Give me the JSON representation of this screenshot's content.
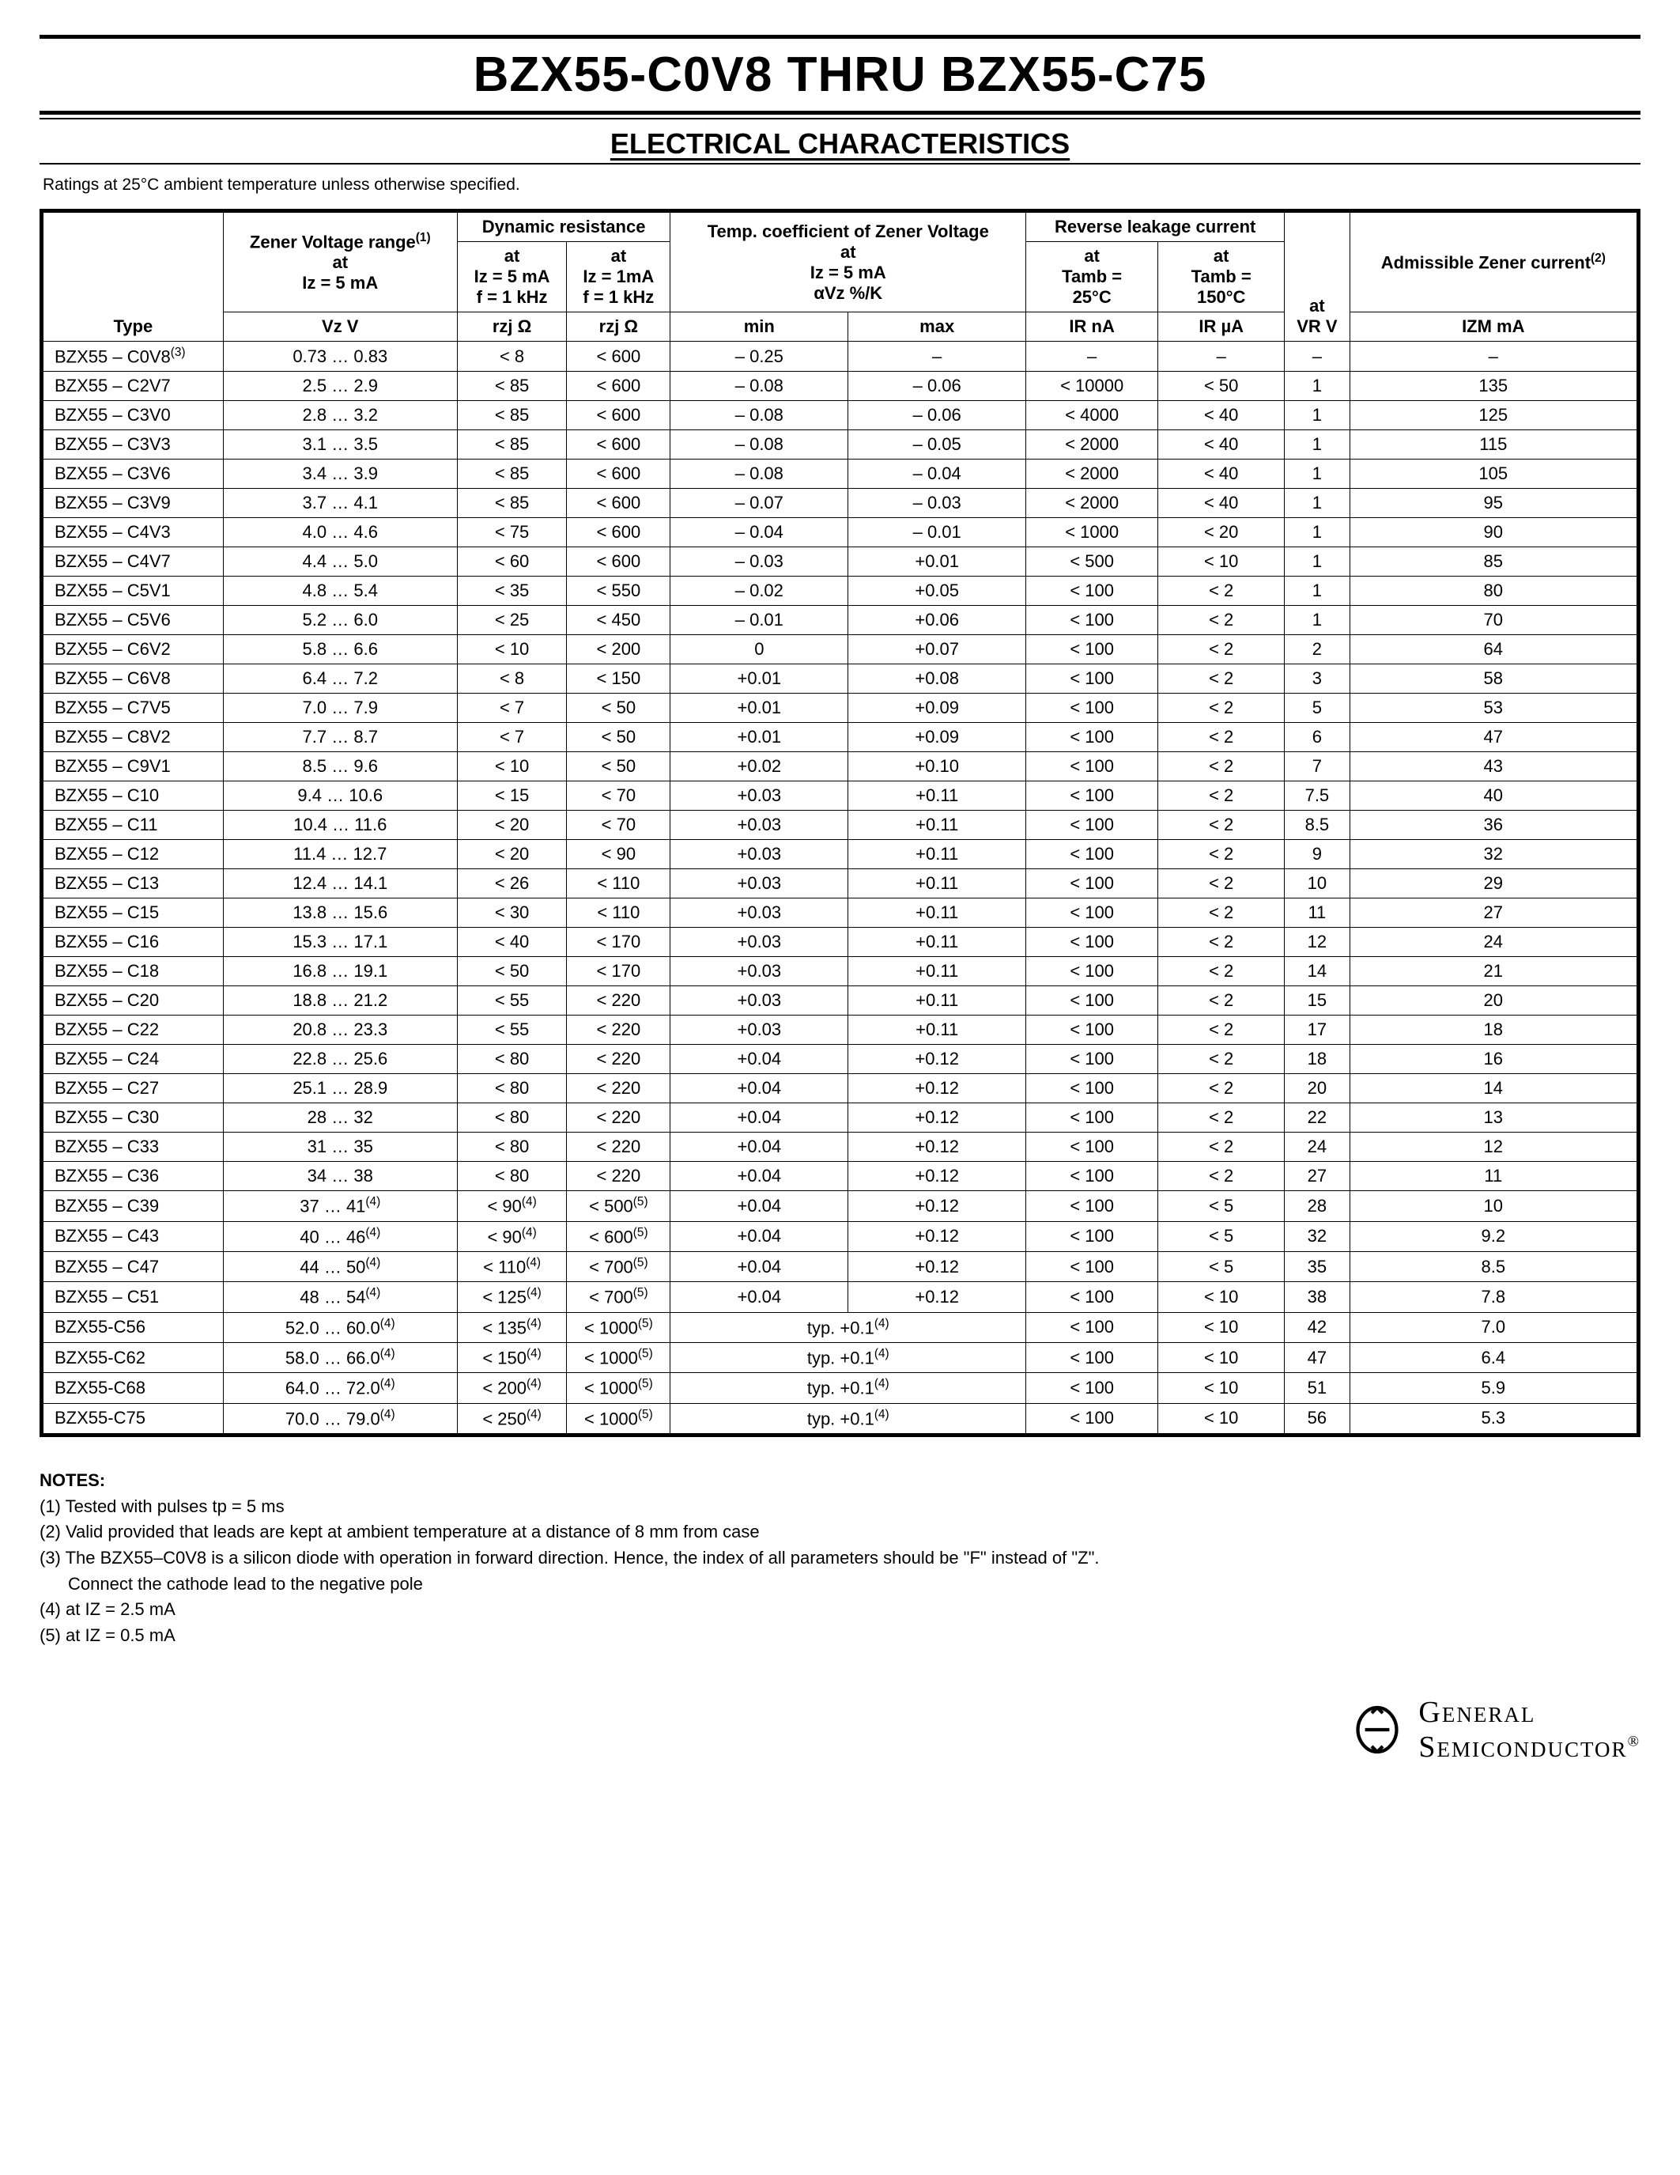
{
  "title": "BZX55-C0V8 THRU BZX55-C75",
  "subtitle": "ELECTRICAL CHARACTERISTICS",
  "ratings_note": "Ratings at 25°C ambient temperature unless otherwise specified.",
  "columns": {
    "type": "Type",
    "zener_heading": "Zener Voltage range",
    "zener_sup": "(1)",
    "zener_cond1": "at",
    "zener_cond2": "Iz = 5 mA",
    "zener_unit": "Vz V",
    "dyn_heading": "Dynamic resistance",
    "dyn_a_1": "at",
    "dyn_a_2": "Iz = 5 mA",
    "dyn_a_3": "f = 1 kHz",
    "dyn_a_unit": "rzj Ω",
    "dyn_b_1": "at",
    "dyn_b_2": "Iz = 1mA",
    "dyn_b_3": "f = 1 kHz",
    "dyn_b_unit": "rzj Ω",
    "tc_heading": "Temp. coefficient of Zener Voltage",
    "tc_cond1": "at",
    "tc_cond2": "Iz = 5 mA",
    "tc_cond3": "αVz %/K",
    "tc_min": "min",
    "tc_max": "max",
    "rl_heading": "Reverse leakage current",
    "rl_a_1": "at",
    "rl_a_2": "Tamb =",
    "rl_a_3": "25°C",
    "rl_a_unit": "IR nA",
    "rl_b_1": "at",
    "rl_b_2": "Tamb =",
    "rl_b_3": "150°C",
    "rl_b_unit": "IR µA",
    "vr_1": "at",
    "vr_2": "VR V",
    "adm_heading": "Admissible Zener current",
    "adm_sup": "(2)",
    "adm_unit": "IZM mA"
  },
  "rows": [
    {
      "type": "BZX55 – C0V8",
      "sup": "(3)",
      "vz": "0.73 … 0.83",
      "r1": "< 8",
      "r2": "< 600",
      "tmin": "– 0.25",
      "tmax": "–",
      "ir1": "–",
      "ir2": "–",
      "vr": "–",
      "izm": "–"
    },
    {
      "type": "BZX55 – C2V7",
      "vz": "2.5 … 2.9",
      "r1": "< 85",
      "r2": "< 600",
      "tmin": "– 0.08",
      "tmax": "– 0.06",
      "ir1": "< 10000",
      "ir2": "< 50",
      "vr": "1",
      "izm": "135"
    },
    {
      "type": "BZX55 – C3V0",
      "vz": "2.8 … 3.2",
      "r1": "< 85",
      "r2": "< 600",
      "tmin": "– 0.08",
      "tmax": "– 0.06",
      "ir1": "< 4000",
      "ir2": "< 40",
      "vr": "1",
      "izm": "125"
    },
    {
      "type": "BZX55 – C3V3",
      "vz": "3.1 … 3.5",
      "r1": "< 85",
      "r2": "< 600",
      "tmin": "– 0.08",
      "tmax": "– 0.05",
      "ir1": "< 2000",
      "ir2": "< 40",
      "vr": "1",
      "izm": "115"
    },
    {
      "type": "BZX55 – C3V6",
      "vz": "3.4 … 3.9",
      "r1": "< 85",
      "r2": "< 600",
      "tmin": "– 0.08",
      "tmax": "– 0.04",
      "ir1": "< 2000",
      "ir2": "< 40",
      "vr": "1",
      "izm": "105"
    },
    {
      "type": "BZX55 – C3V9",
      "vz": "3.7 … 4.1",
      "r1": "< 85",
      "r2": "< 600",
      "tmin": "– 0.07",
      "tmax": "– 0.03",
      "ir1": "< 2000",
      "ir2": "< 40",
      "vr": "1",
      "izm": "95"
    },
    {
      "type": "BZX55 – C4V3",
      "vz": "4.0 … 4.6",
      "r1": "< 75",
      "r2": "< 600",
      "tmin": "– 0.04",
      "tmax": "– 0.01",
      "ir1": "< 1000",
      "ir2": "< 20",
      "vr": "1",
      "izm": "90"
    },
    {
      "type": "BZX55 – C4V7",
      "vz": "4.4 … 5.0",
      "r1": "< 60",
      "r2": "< 600",
      "tmin": "– 0.03",
      "tmax": "+0.01",
      "ir1": "< 500",
      "ir2": "< 10",
      "vr": "1",
      "izm": "85"
    },
    {
      "type": "BZX55 – C5V1",
      "vz": "4.8 … 5.4",
      "r1": "< 35",
      "r2": "< 550",
      "tmin": "– 0.02",
      "tmax": "+0.05",
      "ir1": "< 100",
      "ir2": "< 2",
      "vr": "1",
      "izm": "80"
    },
    {
      "type": "BZX55 – C5V6",
      "vz": "5.2 … 6.0",
      "r1": "< 25",
      "r2": "< 450",
      "tmin": "– 0.01",
      "tmax": "+0.06",
      "ir1": "< 100",
      "ir2": "< 2",
      "vr": "1",
      "izm": "70"
    },
    {
      "type": "BZX55 – C6V2",
      "vz": "5.8 … 6.6",
      "r1": "< 10",
      "r2": "< 200",
      "tmin": "0",
      "tmax": "+0.07",
      "ir1": "< 100",
      "ir2": "< 2",
      "vr": "2",
      "izm": "64"
    },
    {
      "type": "BZX55 – C6V8",
      "vz": "6.4 … 7.2",
      "r1": "< 8",
      "r2": "< 150",
      "tmin": "+0.01",
      "tmax": "+0.08",
      "ir1": "< 100",
      "ir2": "< 2",
      "vr": "3",
      "izm": "58"
    },
    {
      "type": "BZX55 – C7V5",
      "vz": "7.0 … 7.9",
      "r1": "< 7",
      "r2": "< 50",
      "tmin": "+0.01",
      "tmax": "+0.09",
      "ir1": "< 100",
      "ir2": "< 2",
      "vr": "5",
      "izm": "53"
    },
    {
      "type": "BZX55 – C8V2",
      "vz": "7.7 … 8.7",
      "r1": "< 7",
      "r2": "< 50",
      "tmin": "+0.01",
      "tmax": "+0.09",
      "ir1": "< 100",
      "ir2": "< 2",
      "vr": "6",
      "izm": "47"
    },
    {
      "type": "BZX55 – C9V1",
      "vz": "8.5 … 9.6",
      "r1": "< 10",
      "r2": "< 50",
      "tmin": "+0.02",
      "tmax": "+0.10",
      "ir1": "< 100",
      "ir2": "< 2",
      "vr": "7",
      "izm": "43"
    },
    {
      "type": "BZX55 – C10",
      "vz": "9.4 … 10.6",
      "r1": "< 15",
      "r2": "< 70",
      "tmin": "+0.03",
      "tmax": "+0.11",
      "ir1": "< 100",
      "ir2": "< 2",
      "vr": "7.5",
      "izm": "40"
    },
    {
      "type": "BZX55 – C11",
      "vz": "10.4 … 11.6",
      "r1": "< 20",
      "r2": "< 70",
      "tmin": "+0.03",
      "tmax": "+0.11",
      "ir1": "< 100",
      "ir2": "< 2",
      "vr": "8.5",
      "izm": "36"
    },
    {
      "type": "BZX55 – C12",
      "vz": "11.4 … 12.7",
      "r1": "< 20",
      "r2": "< 90",
      "tmin": "+0.03",
      "tmax": "+0.11",
      "ir1": "< 100",
      "ir2": "< 2",
      "vr": "9",
      "izm": "32"
    },
    {
      "type": "BZX55 – C13",
      "vz": "12.4 … 14.1",
      "r1": "< 26",
      "r2": "< 110",
      "tmin": "+0.03",
      "tmax": "+0.11",
      "ir1": "< 100",
      "ir2": "< 2",
      "vr": "10",
      "izm": "29"
    },
    {
      "type": "BZX55 – C15",
      "vz": "13.8 … 15.6",
      "r1": "< 30",
      "r2": "< 110",
      "tmin": "+0.03",
      "tmax": "+0.11",
      "ir1": "< 100",
      "ir2": "< 2",
      "vr": "11",
      "izm": "27"
    },
    {
      "type": "BZX55 – C16",
      "vz": "15.3 … 17.1",
      "r1": "< 40",
      "r2": "< 170",
      "tmin": "+0.03",
      "tmax": "+0.11",
      "ir1": "< 100",
      "ir2": "< 2",
      "vr": "12",
      "izm": "24"
    },
    {
      "type": "BZX55 – C18",
      "vz": "16.8 … 19.1",
      "r1": "< 50",
      "r2": "< 170",
      "tmin": "+0.03",
      "tmax": "+0.11",
      "ir1": "< 100",
      "ir2": "< 2",
      "vr": "14",
      "izm": "21"
    },
    {
      "type": "BZX55 – C20",
      "vz": "18.8 … 21.2",
      "r1": "< 55",
      "r2": "< 220",
      "tmin": "+0.03",
      "tmax": "+0.11",
      "ir1": "< 100",
      "ir2": "< 2",
      "vr": "15",
      "izm": "20"
    },
    {
      "type": "BZX55 – C22",
      "vz": "20.8 … 23.3",
      "r1": "< 55",
      "r2": "< 220",
      "tmin": "+0.03",
      "tmax": "+0.11",
      "ir1": "< 100",
      "ir2": "< 2",
      "vr": "17",
      "izm": "18"
    },
    {
      "type": "BZX55 – C24",
      "vz": "22.8 … 25.6",
      "r1": "< 80",
      "r2": "< 220",
      "tmin": "+0.04",
      "tmax": "+0.12",
      "ir1": "< 100",
      "ir2": "< 2",
      "vr": "18",
      "izm": "16"
    },
    {
      "type": "BZX55 – C27",
      "vz": "25.1 … 28.9",
      "r1": "< 80",
      "r2": "< 220",
      "tmin": "+0.04",
      "tmax": "+0.12",
      "ir1": "< 100",
      "ir2": "< 2",
      "vr": "20",
      "izm": "14"
    },
    {
      "type": "BZX55 – C30",
      "vz": "28 … 32",
      "r1": "< 80",
      "r2": "< 220",
      "tmin": "+0.04",
      "tmax": "+0.12",
      "ir1": "< 100",
      "ir2": "< 2",
      "vr": "22",
      "izm": "13"
    },
    {
      "type": "BZX55 – C33",
      "vz": "31 … 35",
      "r1": "< 80",
      "r2": "< 220",
      "tmin": "+0.04",
      "tmax": "+0.12",
      "ir1": "< 100",
      "ir2": "< 2",
      "vr": "24",
      "izm": "12"
    },
    {
      "type": "BZX55 – C36",
      "vz": "34 … 38",
      "r1": "< 80",
      "r2": "< 220",
      "tmin": "+0.04",
      "tmax": "+0.12",
      "ir1": "< 100",
      "ir2": "< 2",
      "vr": "27",
      "izm": "11"
    },
    {
      "type": "BZX55 – C39",
      "vz": "37 … 41",
      "vzsup": "(4)",
      "r1": "< 90",
      "r1sup": "(4)",
      "r2": "< 500",
      "r2sup": "(5)",
      "tmin": "+0.04",
      "tmax": "+0.12",
      "ir1": "< 100",
      "ir2": "< 5",
      "vr": "28",
      "izm": "10"
    },
    {
      "type": "BZX55 – C43",
      "vz": "40 … 46",
      "vzsup": "(4)",
      "r1": "< 90",
      "r1sup": "(4)",
      "r2": "< 600",
      "r2sup": "(5)",
      "tmin": "+0.04",
      "tmax": "+0.12",
      "ir1": "< 100",
      "ir2": "< 5",
      "vr": "32",
      "izm": "9.2"
    },
    {
      "type": "BZX55 – C47",
      "vz": "44 … 50",
      "vzsup": "(4)",
      "r1": "< 110",
      "r1sup": "(4)",
      "r2": "< 700",
      "r2sup": "(5)",
      "tmin": "+0.04",
      "tmax": "+0.12",
      "ir1": "< 100",
      "ir2": "< 5",
      "vr": "35",
      "izm": "8.5"
    },
    {
      "type": "BZX55 – C51",
      "vz": "48 … 54",
      "vzsup": "(4)",
      "r1": "< 125",
      "r1sup": "(4)",
      "r2": "< 700",
      "r2sup": "(5)",
      "tmin": "+0.04",
      "tmax": "+0.12",
      "ir1": "< 100",
      "ir2": "< 10",
      "vr": "38",
      "izm": "7.8"
    },
    {
      "type": "BZX55-C56",
      "vz": "52.0 … 60.0",
      "vzsup": "(4)",
      "r1": "< 135",
      "r1sup": "(4)",
      "r2": "< 1000",
      "r2sup": "(5)",
      "tspan": "typ. +0.1",
      "tsup": "(4)",
      "ir1": "< 100",
      "ir2": "< 10",
      "vr": "42",
      "izm": "7.0"
    },
    {
      "type": "BZX55-C62",
      "vz": "58.0 … 66.0",
      "vzsup": "(4)",
      "r1": "< 150",
      "r1sup": "(4)",
      "r2": "< 1000",
      "r2sup": "(5)",
      "tspan": "typ. +0.1",
      "tsup": "(4)",
      "ir1": "< 100",
      "ir2": "< 10",
      "vr": "47",
      "izm": "6.4"
    },
    {
      "type": "BZX55-C68",
      "vz": "64.0 … 72.0",
      "vzsup": "(4)",
      "r1": "< 200",
      "r1sup": "(4)",
      "r2": "< 1000",
      "r2sup": "(5)",
      "tspan": "typ. +0.1",
      "tsup": "(4)",
      "ir1": "< 100",
      "ir2": "< 10",
      "vr": "51",
      "izm": "5.9"
    },
    {
      "type": "BZX55-C75",
      "vz": "70.0 … 79.0",
      "vzsup": "(4)",
      "r1": "< 250",
      "r1sup": "(4)",
      "r2": "< 1000",
      "r2sup": "(5)",
      "tspan": "typ. +0.1",
      "tsup": "(4)",
      "ir1": "< 100",
      "ir2": "< 10",
      "vr": "56",
      "izm": "5.3"
    }
  ],
  "notes_title": "NOTES:",
  "notes": [
    "(1) Tested with pulses tp = 5 ms",
    "(2) Valid provided that leads are kept at ambient temperature at a distance of 8 mm from case",
    "(3) The BZX55–C0V8 is a silicon diode with operation in forward direction. Hence, the index of all parameters should be \"F\" instead of \"Z\".",
    "Connect the cathode lead to the negative pole",
    "(4) at IZ = 2.5 mA",
    "(5) at IZ = 0.5 mA"
  ],
  "logo_top": "General",
  "logo_bot": "Semiconductor"
}
